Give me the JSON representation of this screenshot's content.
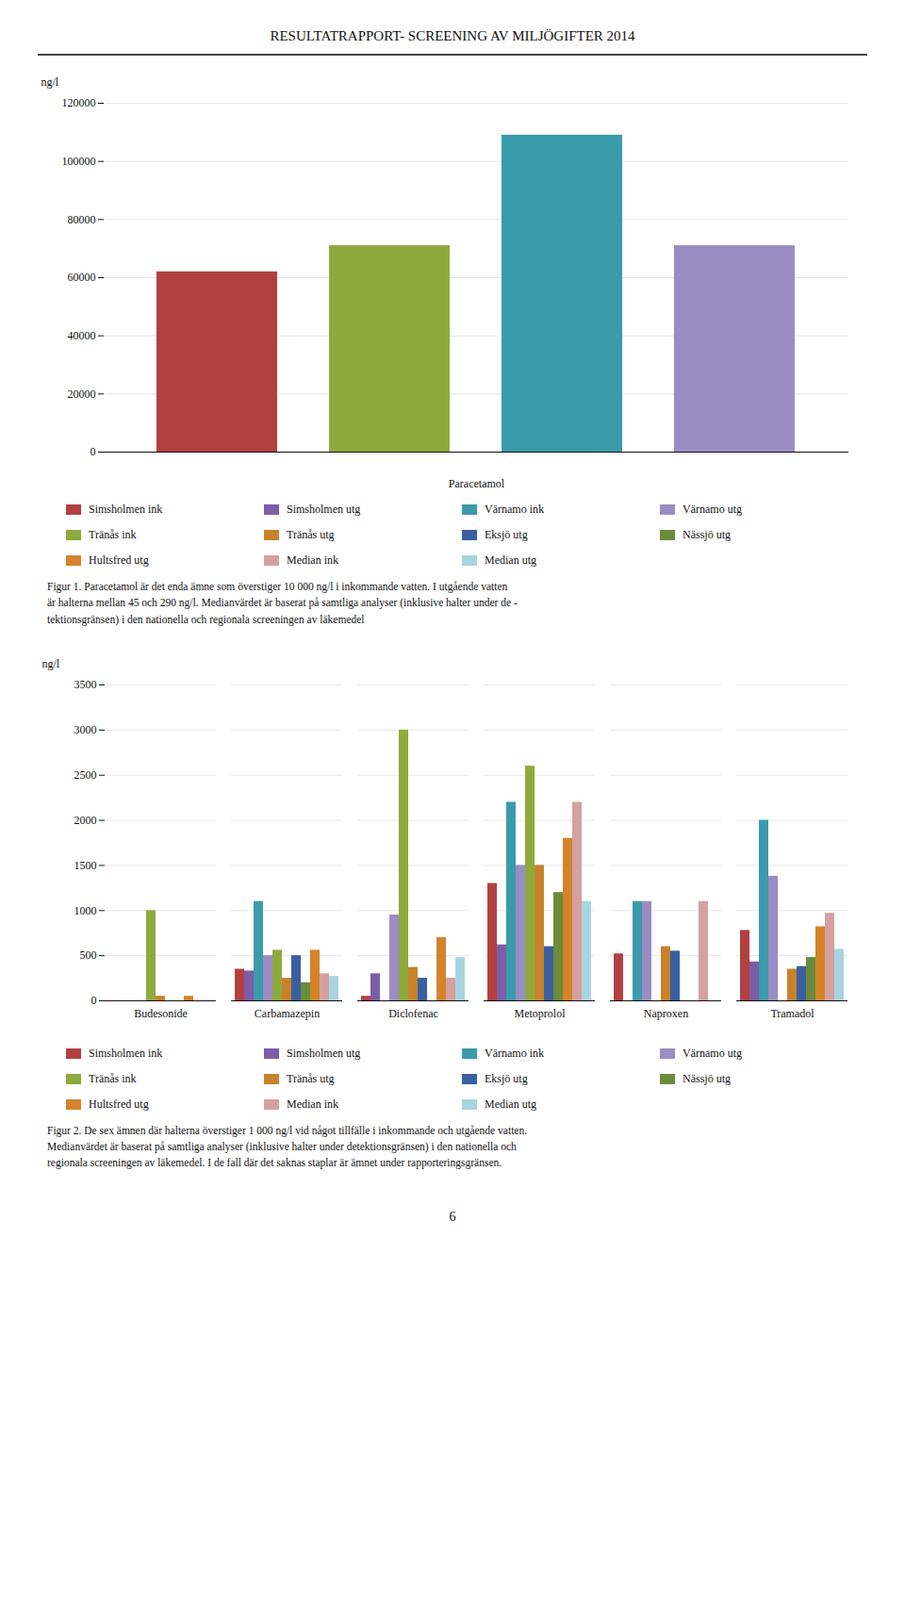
{
  "title": "RESULTATRAPPORT- SCREENING AV MILJÖGIFTER 2014",
  "chart_data": [
    {
      "type": "bar",
      "xlabel": "Paracetamol",
      "ylabel": "ng/l",
      "categories": [
        null,
        null,
        null,
        null
      ],
      "values": [
        62000,
        71000,
        109000,
        71000
      ],
      "colors": [
        "#b34040",
        "#8faa3c",
        "#3a9baa",
        "#9b8cc4"
      ],
      "ylim": [
        0,
        120000
      ],
      "yticks": [
        0,
        20000,
        40000,
        60000,
        80000,
        100000,
        120000
      ],
      "grid": true,
      "tick_labels": "y",
      "legend_entries": [
        {
          "name": "Simsholmen ink",
          "color": "#b34040"
        },
        {
          "name": "Simsholmen utg",
          "color": "#7b5ea7"
        },
        {
          "name": "Värnamo ink",
          "color": "#3a9baa"
        },
        {
          "name": "Värnamo utg",
          "color": "#9b8cc4"
        },
        {
          "name": "Tränås ink",
          "color": "#8faa3c"
        },
        {
          "name": "Tränås utg",
          "color": "#c8822a"
        },
        {
          "name": "Eksjö utg",
          "color": "#3a5fa0"
        },
        {
          "name": "Nässjö utg",
          "color": "#6b8c3a"
        },
        {
          "name": "Hultsfred utg",
          "color": "#d4832a"
        },
        {
          "name": "Median ink",
          "color": "#d4a0a0"
        },
        {
          "name": "Median utg",
          "color": "#a8d4e0"
        }
      ],
      "caption": "Figur 1. Paracetamol är det enda ämne som överstiger 10 000 ng/l i inkommande vatten. I utgående vatten\när halterna mellan 45 och 290 ng/l. Medianvärdet är baserat på samtliga analyser (inklusive halter under de -\ntektionsgränsen) i den nationella och regionala screeningen av läkemedel"
    },
    {
      "type": "bar",
      "ylabel": "ng/l",
      "categories": [
        "Budesonide",
        "Carbamazepin",
        "Diclofenac",
        "Metoprolol",
        "Naproxen",
        "Tramadol"
      ],
      "series": [
        {
          "name": "Simsholmen ink",
          "color": "#b34040",
          "values": [
            0,
            350,
            50,
            1300,
            520,
            780
          ]
        },
        {
          "name": "Simsholmen utg",
          "color": "#7b5ea7",
          "values": [
            0,
            330,
            300,
            620,
            0,
            430
          ]
        },
        {
          "name": "Värnamo ink",
          "color": "#3a9baa",
          "values": [
            0,
            1100,
            0,
            2200,
            1100,
            2000
          ]
        },
        {
          "name": "Värnamo utg",
          "color": "#9b8cc4",
          "values": [
            0,
            500,
            950,
            1500,
            1100,
            1380
          ]
        },
        {
          "name": "Tränås ink",
          "color": "#8faa3c",
          "values": [
            1000,
            560,
            3000,
            2600,
            0,
            0
          ]
        },
        {
          "name": "Tränås utg",
          "color": "#c8822a",
          "values": [
            50,
            250,
            370,
            1500,
            600,
            350
          ]
        },
        {
          "name": "Eksjö utg",
          "color": "#3a5fa0",
          "values": [
            0,
            500,
            250,
            600,
            550,
            380
          ]
        },
        {
          "name": "Nässjö utg",
          "color": "#6b8c3a",
          "values": [
            0,
            200,
            0,
            1200,
            0,
            480
          ]
        },
        {
          "name": "Hultsfred utg",
          "color": "#d4832a",
          "values": [
            50,
            560,
            700,
            1800,
            0,
            820
          ]
        },
        {
          "name": "Median ink",
          "color": "#d4a0a0",
          "values": [
            0,
            300,
            250,
            2200,
            1100,
            970
          ]
        },
        {
          "name": "Median utg",
          "color": "#a8d4e0",
          "values": [
            0,
            270,
            480,
            1100,
            0,
            570
          ]
        }
      ],
      "ylim": [
        0,
        3500
      ],
      "yticks": [
        0,
        500,
        1000,
        1500,
        2000,
        2500,
        3000,
        3500
      ],
      "grid": true,
      "caption": "Figur 2. De sex ämnen där halterna överstiger 1 000 ng/l vid något tillfälle i inkommande och utgående vatten.\nMedianvärdet är baserat på samtliga analyser (inklusive halter under detektionsgränsen) i den nationella och\nregionala screeningen av läkemedel. I de fall där det saknas staplar är ämnet under rapporteringsgränsen."
    }
  ],
  "annotations": [
    "6"
  ]
}
